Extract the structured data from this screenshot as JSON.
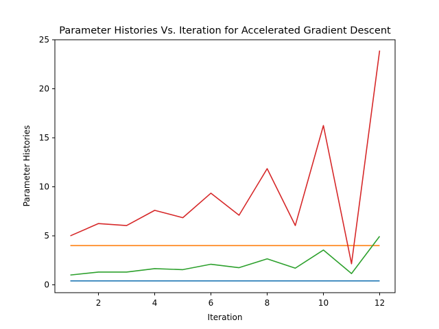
{
  "chart_data": {
    "type": "line",
    "title": "Parameter Histories Vs. Iteration for Accelerated Gradient Descent",
    "xlabel": "Iteration",
    "ylabel": "Parameter Histories",
    "xlim": [
      0.45,
      12.55
    ],
    "ylim": [
      -0.8,
      25
    ],
    "xticks": [
      2,
      4,
      6,
      8,
      10,
      12
    ],
    "yticks": [
      0,
      5,
      10,
      15,
      20,
      25
    ],
    "grid": false,
    "x": [
      1,
      2,
      3,
      4,
      5,
      6,
      7,
      8,
      9,
      10,
      11,
      12
    ],
    "series": [
      {
        "color": "#1f77b4",
        "values": [
          0.4,
          0.4,
          0.4,
          0.4,
          0.4,
          0.4,
          0.4,
          0.4,
          0.4,
          0.4,
          0.4,
          0.4
        ]
      },
      {
        "color": "#ff7f0e",
        "values": [
          4.0,
          4.0,
          4.0,
          4.0,
          4.0,
          4.0,
          4.0,
          4.0,
          4.0,
          4.0,
          4.0,
          4.0
        ]
      },
      {
        "color": "#2ca02c",
        "values": [
          1.0,
          1.3,
          1.3,
          1.65,
          1.55,
          2.1,
          1.75,
          2.65,
          1.7,
          3.55,
          1.15,
          4.95
        ]
      },
      {
        "color": "#d62728",
        "values": [
          5.0,
          6.25,
          6.05,
          7.6,
          6.85,
          9.35,
          7.1,
          11.85,
          6.05,
          16.25,
          2.15,
          23.9
        ]
      }
    ]
  }
}
